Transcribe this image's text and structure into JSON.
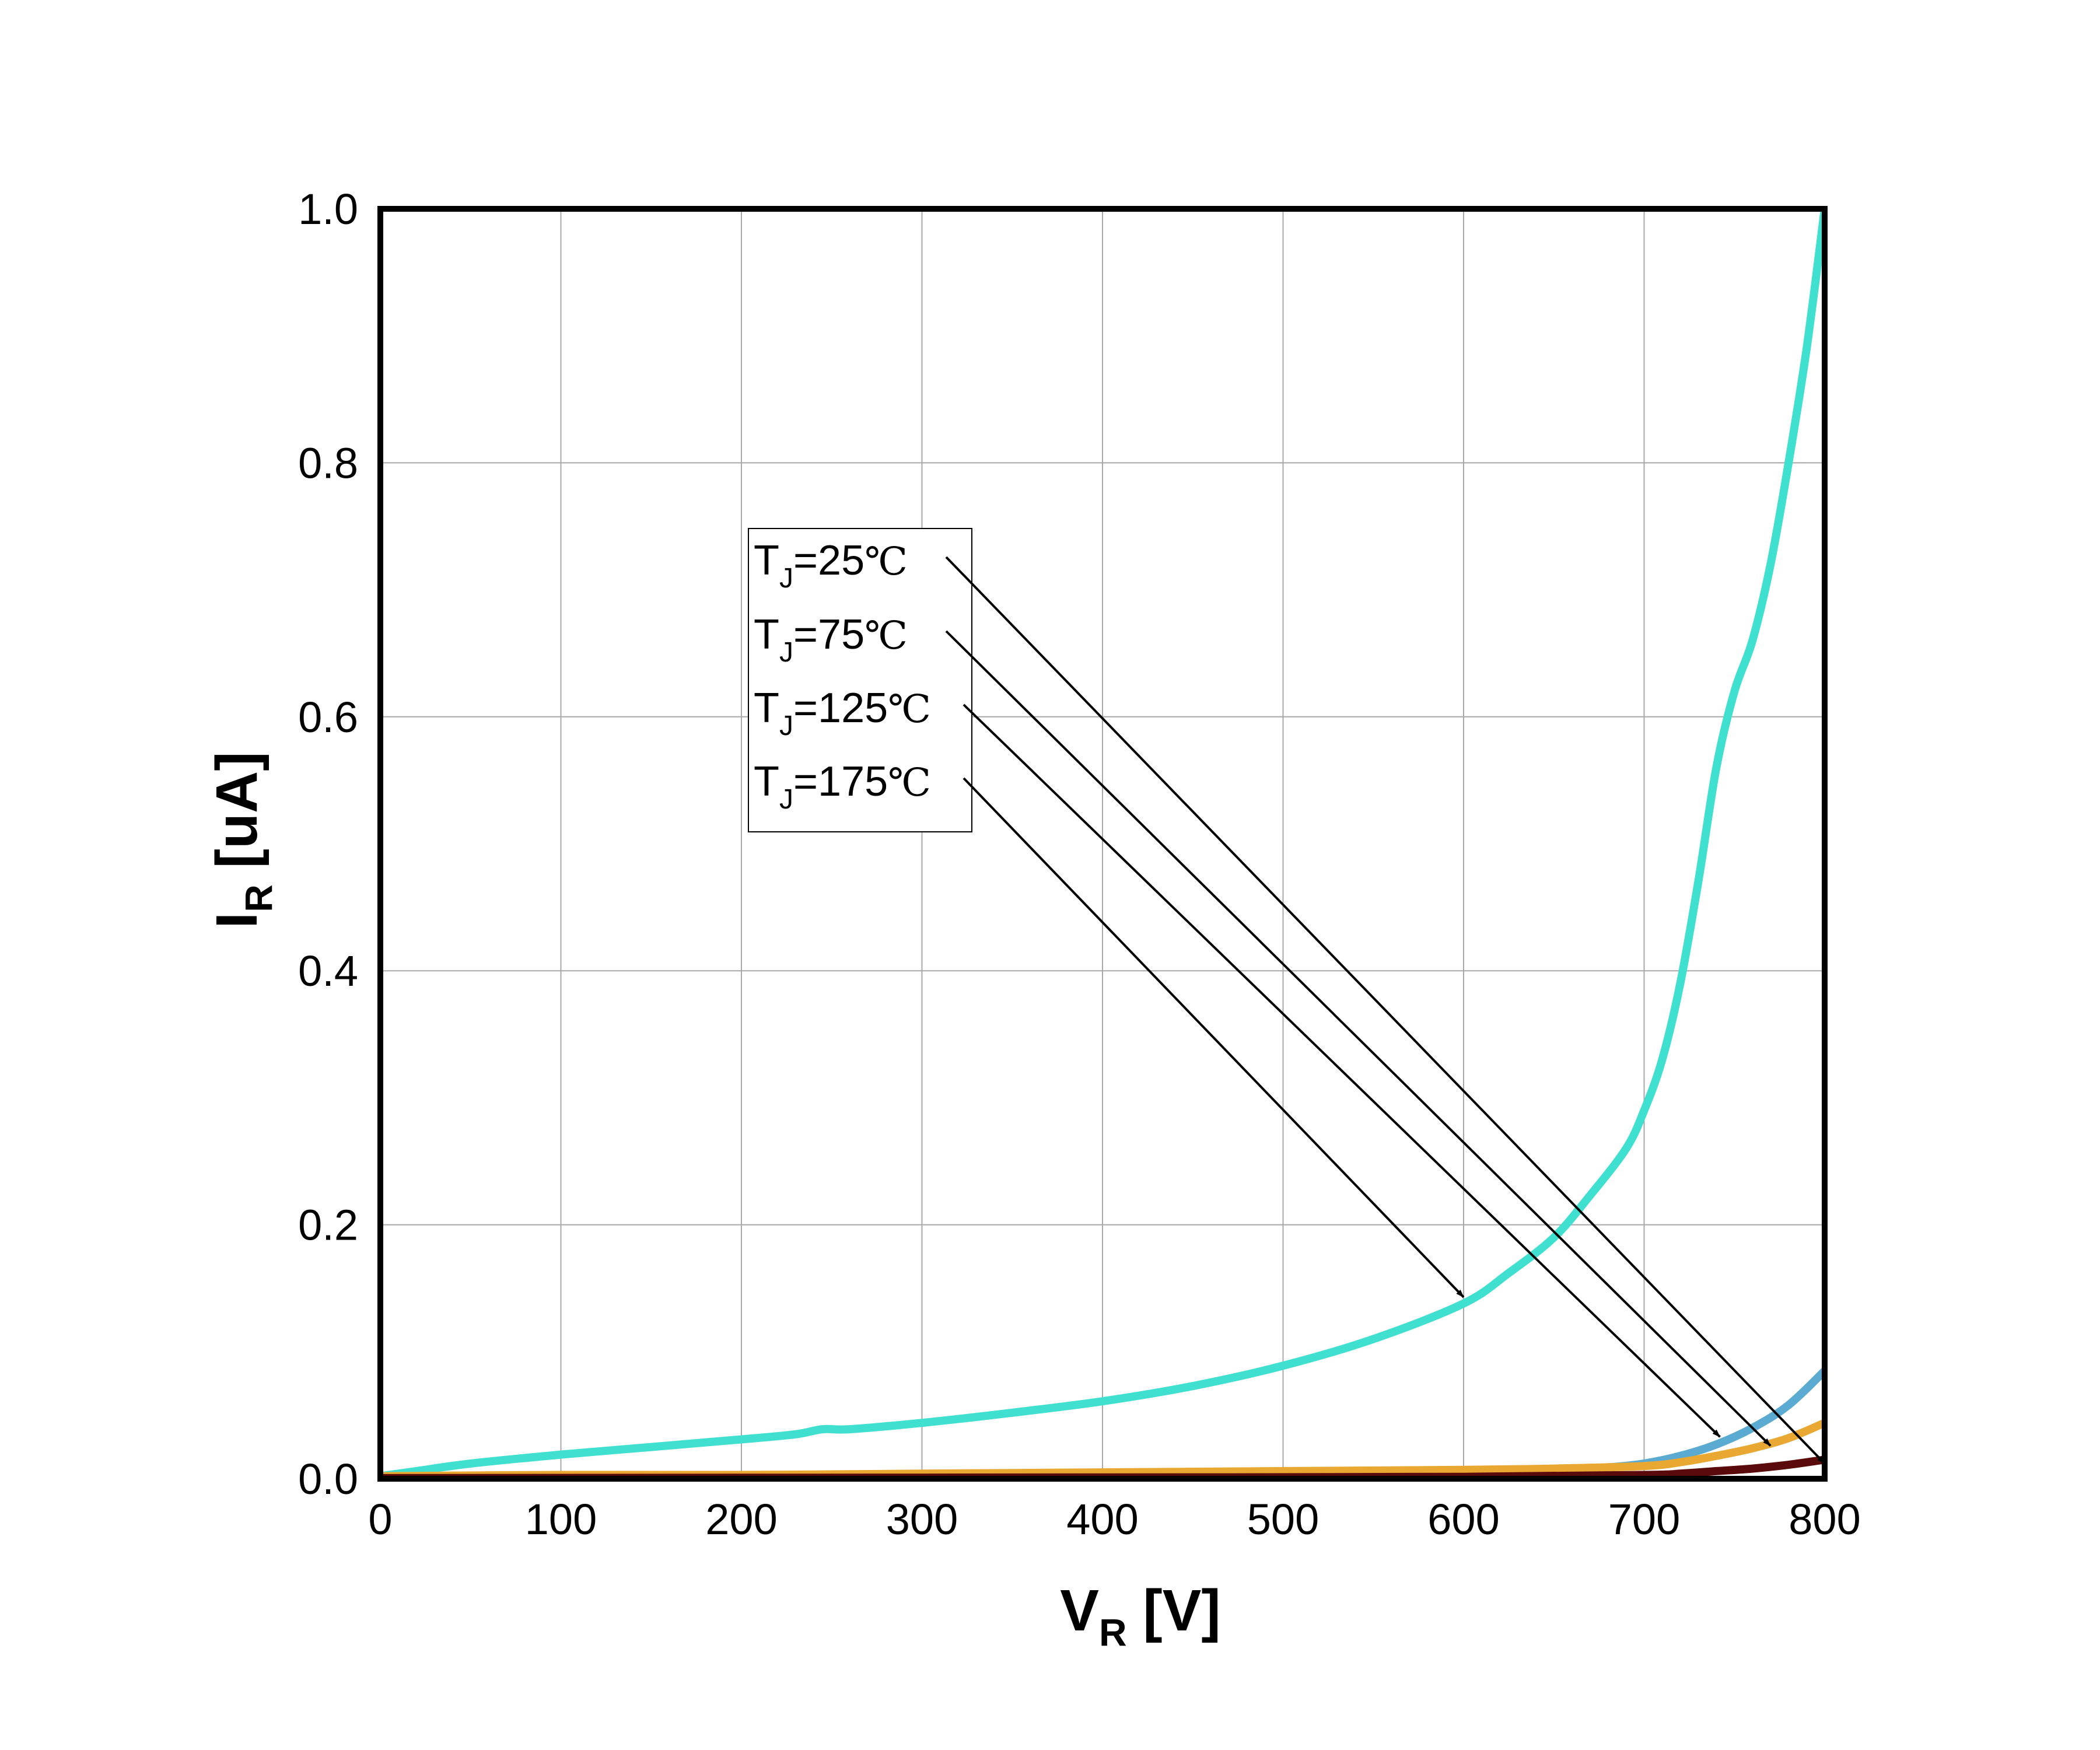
{
  "chart_data": {
    "type": "line",
    "title": "",
    "xlabel": {
      "main": "V",
      "sub": "R",
      "unit": " [V]"
    },
    "ylabel": {
      "main": "I",
      "sub": "R",
      "unit": " [uA]"
    },
    "xlim": [
      0,
      800
    ],
    "ylim": [
      0,
      1.0
    ],
    "grid": true,
    "x_ticks": [
      {
        "value": 0,
        "label": "0"
      },
      {
        "value": 100,
        "label": "100"
      },
      {
        "value": 200,
        "label": "200"
      },
      {
        "value": 300,
        "label": "300"
      },
      {
        "value": 400,
        "label": "400"
      },
      {
        "value": 500,
        "label": "500"
      },
      {
        "value": 600,
        "label": "600"
      },
      {
        "value": 700,
        "label": "700"
      },
      {
        "value": 800,
        "label": "800"
      }
    ],
    "y_ticks": [
      {
        "value": 0,
        "label": "0.0"
      },
      {
        "value": 0.2,
        "label": "0.2"
      },
      {
        "value": 0.4,
        "label": "0.4"
      },
      {
        "value": 0.6,
        "label": "0.6"
      },
      {
        "value": 0.8,
        "label": "0.8"
      },
      {
        "value": 1.0,
        "label": "1.0"
      }
    ],
    "legend_position": "upper-center",
    "series": [
      {
        "name": "TJ=175°C",
        "color": "#40E0D0",
        "x": [
          0,
          20,
          50,
          100,
          150,
          200,
          230,
          245,
          260,
          300,
          350,
          400,
          450,
          500,
          550,
          600,
          625,
          650,
          670,
          690,
          700,
          710,
          720,
          730,
          740,
          750,
          760,
          770,
          780,
          790,
          800
        ],
        "y": [
          0.002,
          0.006,
          0.012,
          0.019,
          0.025,
          0.031,
          0.035,
          0.039,
          0.039,
          0.044,
          0.052,
          0.061,
          0.073,
          0.089,
          0.11,
          0.138,
          0.162,
          0.19,
          0.223,
          0.26,
          0.29,
          0.33,
          0.39,
          0.47,
          0.56,
          0.62,
          0.66,
          0.72,
          0.8,
          0.89,
          1.0
        ]
      },
      {
        "name": "TJ=125°C",
        "color": "#5AAAD2",
        "x": [
          0,
          100,
          200,
          300,
          400,
          500,
          600,
          650,
          680,
          700,
          720,
          740,
          760,
          780,
          800
        ],
        "y": [
          0.001,
          0.002,
          0.002,
          0.003,
          0.004,
          0.005,
          0.006,
          0.007,
          0.009,
          0.012,
          0.018,
          0.027,
          0.04,
          0.058,
          0.085
        ]
      },
      {
        "name": "TJ=75°C",
        "color": "#E8A832",
        "x": [
          0,
          100,
          200,
          300,
          400,
          500,
          600,
          650,
          700,
          720,
          740,
          760,
          780,
          800
        ],
        "y": [
          0.002,
          0.003,
          0.003,
          0.004,
          0.005,
          0.006,
          0.007,
          0.008,
          0.01,
          0.013,
          0.018,
          0.024,
          0.032,
          0.044
        ]
      },
      {
        "name": "TJ=25°C",
        "color": "#5A0A0A",
        "x": [
          0,
          200,
          400,
          600,
          700,
          720,
          740,
          760,
          780,
          800
        ],
        "y": [
          0.0005,
          0.0008,
          0.001,
          0.0015,
          0.003,
          0.004,
          0.006,
          0.008,
          0.011,
          0.015
        ]
      }
    ],
    "annotations": [
      {
        "label_main": "T",
        "label_sub": "J",
        "label_rest": "=25",
        "unit": "℃",
        "target_x": 800,
        "target_y": 0.012
      },
      {
        "label_main": "T",
        "label_sub": "J",
        "label_rest": "=75",
        "unit": "℃",
        "target_x": 770,
        "target_y": 0.026
      },
      {
        "label_main": "T",
        "label_sub": "J",
        "label_rest": "=125",
        "unit": "℃",
        "target_x": 742,
        "target_y": 0.033
      },
      {
        "label_main": "T",
        "label_sub": "J",
        "label_rest": "=175",
        "unit": "℃",
        "target_x": 600,
        "target_y": 0.143
      }
    ]
  }
}
